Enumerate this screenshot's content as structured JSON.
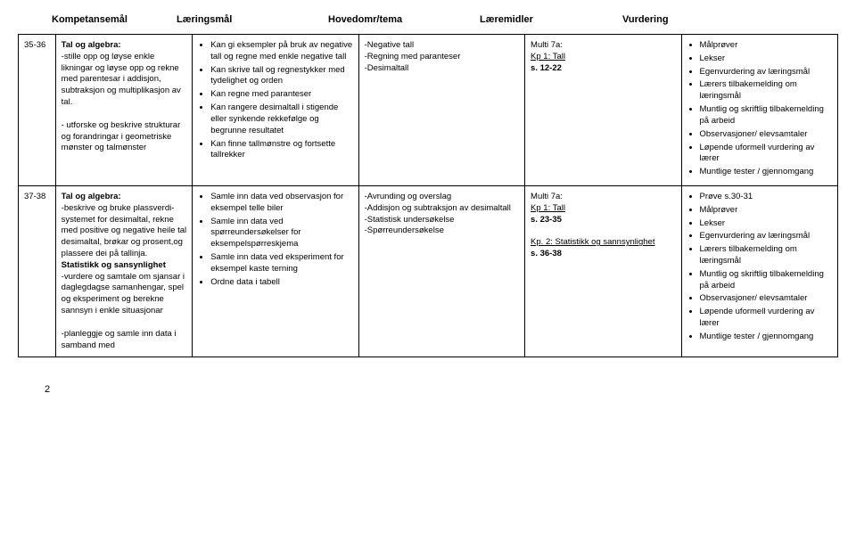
{
  "headers": {
    "col2": "Kompetansemål",
    "col3": "Læringsmål",
    "col4": "Hovedomr/tema",
    "col5": "Læremidler",
    "col6": "Vurdering"
  },
  "rows": [
    {
      "week": "35-36",
      "goal_title": "Tal og algebra:",
      "goal_items": [
        "-stille opp og løyse enkle likningar og løyse opp og rekne med parentesar i addisjon, subtraksjon og multiplikasjon av tal.",
        "",
        "- utforske og beskrive strukturar og forandringar i geometriske mønster og talmønster"
      ],
      "learn": [
        "Kan gi eksempler på bruk av negative tall og regne med enkle negative tall",
        "Kan skrive tall og regnestykker med tydelighet og orden",
        "Kan regne med paranteser",
        "Kan rangere desimaltall i stigende eller synkende rekkefølge og begrunne resultatet",
        "Kan finne tallmønstre og fortsette tallrekker"
      ],
      "topic": [
        "-Negative tall",
        "-Regning med paranteser",
        "-Desimaltall"
      ],
      "res_title": "Multi 7a:",
      "res_sub": "Kp 1: Tall",
      "res_pages": "s. 12-22",
      "res_extra_title": "",
      "res_extra_pages": "",
      "assess": [
        "Målprøver",
        "Lekser",
        "Egenvurdering av læringsmål",
        "Lærers tilbakemelding om læringsmål",
        "Muntlig og skriftlig tilbakemelding på arbeid",
        "Observasjoner/ elevsamtaler",
        "Løpende uformell vurdering av lærer",
        "Muntlige tester / gjennomgang"
      ]
    },
    {
      "week": "37-38",
      "goal_title": "Tal og algebra:",
      "goal_items": [
        "-beskrive og bruke plassverdi-systemet for desimaltal, rekne med positive og negative heile tal desimaltal, brøkar og prosent,og plassere dei på tallinja."
      ],
      "goal_title2": "Statistikk og sansynlighet",
      "goal_items2": [
        "-vurdere og samtale om sjansar i daglegdagse samanhengar, spel og eksperiment og berekne sannsyn i enkle situasjonar",
        "",
        "-planleggje og samle inn data i samband med"
      ],
      "learn": [
        "Samle inn data ved observasjon for eksempel telle biler",
        "Samle inn data ved spørreundersøkelser for eksempelspørreskjema",
        "Samle inn data ved eksperiment for eksempel kaste terning",
        "Ordne data i tabell"
      ],
      "topic": [
        "-Avrunding og overslag",
        "-Addisjon og subtraksjon av desimaltall",
        "-Statistisk undersøkelse",
        "-Spørreundersøkelse"
      ],
      "res_title": "Multi 7a:",
      "res_sub": "Kp 1: Tall",
      "res_pages": "s. 23-35",
      "res_extra_title": "Kp. 2: Statistikk og sannsynlighet",
      "res_extra_pages": "s. 36-38",
      "assess": [
        "Prøve s.30-31",
        "Målprøver",
        "Lekser",
        "Egenvurdering av læringsmål",
        "Lærers tilbakemelding om læringsmål",
        "Muntlig og skriftlig tilbakemelding på arbeid",
        "Observasjoner/ elevsamtaler",
        "Løpende uformell vurdering av lærer",
        "Muntlige tester / gjennomgang"
      ]
    }
  ],
  "page_number": "2"
}
